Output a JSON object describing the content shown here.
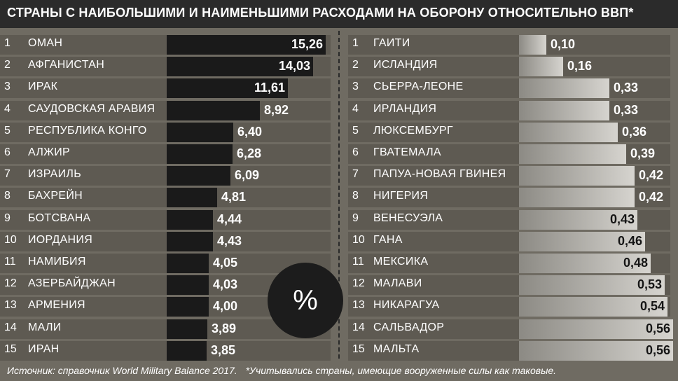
{
  "title": "СТРАНЫ С НАИБОЛЬШИМИ И НАИМЕНЬШИМИ РАСХОДАМИ НА ОБОРОНУ ОТНОСИТЕЛЬНО ВВП*",
  "center_symbol": "%",
  "footer": {
    "source": "Источник: справочник World Military Balance 2017.",
    "note": "*Учитывались страны, имеющие вооруженные силы как таковые."
  },
  "colors": {
    "background": "#6f6b62",
    "title_bar": "#2b2b2b",
    "dark_bar": "#1a1a1a",
    "light_bar": "#d6d4cf"
  },
  "chart_data": [
    {
      "type": "bar",
      "orientation": "horizontal",
      "unit": "%",
      "categories": [
        "ОМАН",
        "АФГАНИСТАН",
        "ИРАК",
        "САУДОВСКАЯ АРАВИЯ",
        "РЕСПУБЛИКА КОНГО",
        "АЛЖИР",
        "ИЗРАИЛЬ",
        "БАХРЕЙН",
        "БОТСВАНА",
        "ИОРДАНИЯ",
        "НАМИБИЯ",
        "АЗЕРБАЙДЖАН",
        "АРМЕНИЯ",
        "МАЛИ",
        "ИРАН"
      ],
      "ranks": [
        "1",
        "2",
        "3",
        "4",
        "5",
        "6",
        "7",
        "8",
        "9",
        "10",
        "11",
        "12",
        "13",
        "14",
        "15"
      ],
      "labels": [
        "15,26",
        "14,03",
        "11,61",
        "8,92",
        "6,40",
        "6,28",
        "6,09",
        "4,81",
        "4,44",
        "4,43",
        "4,05",
        "4,03",
        "4,00",
        "3,89",
        "3,85"
      ],
      "values": [
        15.26,
        14.03,
        11.61,
        8.92,
        6.4,
        6.28,
        6.09,
        4.81,
        4.44,
        4.43,
        4.05,
        4.03,
        4.0,
        3.89,
        3.85
      ]
    },
    {
      "type": "bar",
      "orientation": "horizontal",
      "unit": "%",
      "categories": [
        "ГАИТИ",
        "ИСЛАНДИЯ",
        "СЬЕРРА-ЛЕОНЕ",
        "ИРЛАНДИЯ",
        "ЛЮКСЕМБУРГ",
        "ГВАТЕМАЛА",
        "ПАПУА-НОВАЯ ГВИНЕЯ",
        "НИГЕРИЯ",
        "ВЕНЕСУЭЛА",
        "ГАНА",
        "МЕКСИКА",
        "МАЛАВИ",
        "НИКАРАГУА",
        "САЛЬВАДОР",
        "МАЛЬТА"
      ],
      "ranks": [
        "1",
        "2",
        "3",
        "4",
        "5",
        "6",
        "7",
        "8",
        "9",
        "10",
        "11",
        "12",
        "13",
        "14",
        "15"
      ],
      "labels": [
        "0,10",
        "0,16",
        "0,33",
        "0,33",
        "0,36",
        "0,39",
        "0,42",
        "0,42",
        "0,43",
        "0,46",
        "0,48",
        "0,53",
        "0,54",
        "0,56",
        "0,56"
      ],
      "values": [
        0.1,
        0.16,
        0.33,
        0.33,
        0.36,
        0.39,
        0.42,
        0.42,
        0.43,
        0.46,
        0.48,
        0.53,
        0.54,
        0.56,
        0.56
      ]
    }
  ]
}
